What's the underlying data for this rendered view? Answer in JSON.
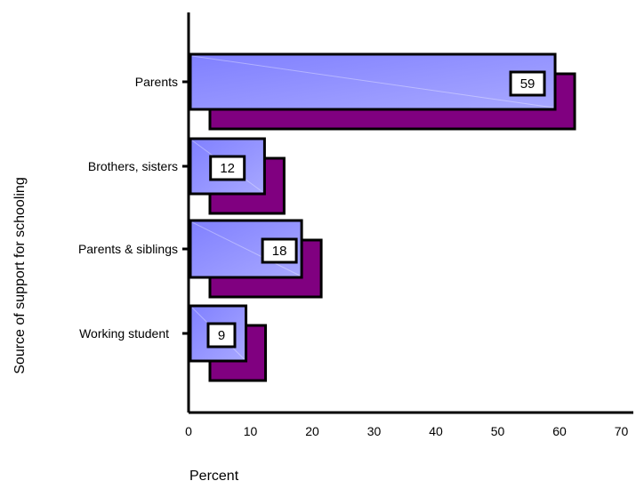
{
  "chart_data": {
    "type": "bar",
    "orientation": "horizontal",
    "style": "3d",
    "categories": [
      "Parents",
      "Brothers, sisters",
      "Parents & siblings",
      "Working student"
    ],
    "values": [
      59,
      12,
      18,
      9
    ],
    "data_labels": [
      "59",
      "12",
      "18",
      "9"
    ],
    "xlabel": "Percent",
    "ylabel": "Source of support for schooling",
    "xlim": [
      0,
      70
    ],
    "xticks": [
      "0",
      "10",
      "20",
      "30",
      "40",
      "50",
      "60",
      "70"
    ],
    "grid": false,
    "legend": "none",
    "colors": {
      "bar_face": "#8080ff",
      "bar_face_highlight": "#a8a8ff",
      "bar_depth": "#800080",
      "outline": "#000000",
      "label_box": "#ffffff"
    }
  }
}
